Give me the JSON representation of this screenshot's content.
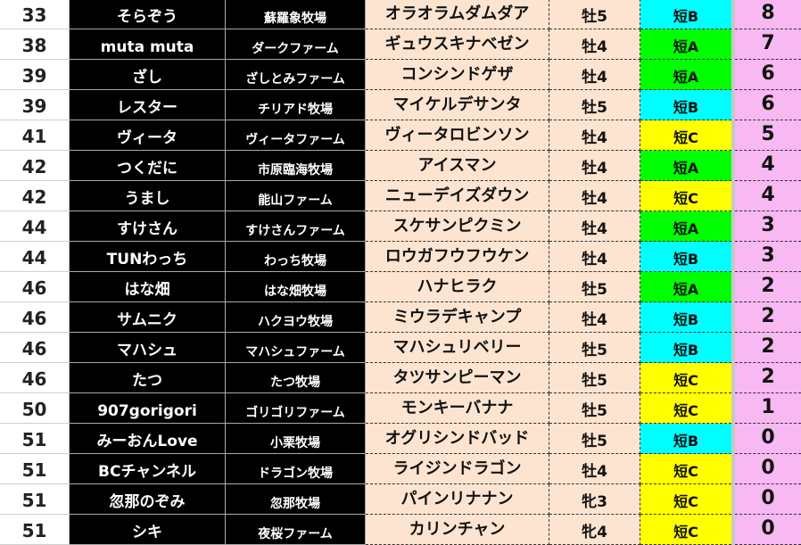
{
  "type_colors": {
    "短A": "#00ff00",
    "短B": "#00ffff",
    "短C": "#ffff00"
  },
  "rows": [
    {
      "rank": "33",
      "name": "そらぞう",
      "farm": "蘇羅象牧場",
      "horse": "オラオラムダムダア",
      "sex_age": "牡5",
      "type": "短B",
      "points": "8"
    },
    {
      "rank": "38",
      "name": "muta muta",
      "farm": "ダークファーム",
      "horse": "ギュウスキナベゼン",
      "sex_age": "牡4",
      "type": "短A",
      "points": "7"
    },
    {
      "rank": "39",
      "name": "ざし",
      "farm": "ざしとみファーム",
      "horse": "コンシンドゲザ",
      "sex_age": "牡4",
      "type": "短A",
      "points": "6"
    },
    {
      "rank": "39",
      "name": "レスター",
      "farm": "チリアド牧場",
      "horse": "マイケルデサンタ",
      "sex_age": "牡5",
      "type": "短B",
      "points": "6"
    },
    {
      "rank": "41",
      "name": "ヴィータ",
      "farm": "ヴィータファーム",
      "horse": "ヴィータロビンソン",
      "sex_age": "牡4",
      "type": "短C",
      "points": "5"
    },
    {
      "rank": "42",
      "name": "つくだに",
      "farm": "市原臨海牧場",
      "horse": "アイスマン",
      "sex_age": "牡4",
      "type": "短A",
      "points": "4"
    },
    {
      "rank": "42",
      "name": "うまし",
      "farm": "能山ファーム",
      "horse": "ニューデイズダウン",
      "sex_age": "牡4",
      "type": "短C",
      "points": "4"
    },
    {
      "rank": "44",
      "name": "すけさん",
      "farm": "すけさんファーム",
      "horse": "スケサンピクミン",
      "sex_age": "牡4",
      "type": "短A",
      "points": "3"
    },
    {
      "rank": "44",
      "name": "TUNわっち",
      "farm": "わっち牧場",
      "horse": "ロウガフウフウケン",
      "sex_age": "牡4",
      "type": "短B",
      "points": "3"
    },
    {
      "rank": "46",
      "name": "はな畑",
      "farm": "はな畑牧場",
      "horse": "ハナヒラク",
      "sex_age": "牡5",
      "type": "短A",
      "points": "2"
    },
    {
      "rank": "46",
      "name": "サムニク",
      "farm": "ハクヨウ牧場",
      "horse": "ミウラデキャンプ",
      "sex_age": "牡4",
      "type": "短B",
      "points": "2"
    },
    {
      "rank": "46",
      "name": "マハシュ",
      "farm": "マハシュファーム",
      "horse": "マハシュリベリー",
      "sex_age": "牡5",
      "type": "短B",
      "points": "2"
    },
    {
      "rank": "46",
      "name": "たつ",
      "farm": "たつ牧場",
      "horse": "タツサンピーマン",
      "sex_age": "牡5",
      "type": "短C",
      "points": "2"
    },
    {
      "rank": "50",
      "name": "907gorigori",
      "farm": "ゴリゴリファーム",
      "horse": "モンキーバナナ",
      "sex_age": "牡5",
      "type": "短C",
      "points": "1"
    },
    {
      "rank": "51",
      "name": "みーおんLove",
      "farm": "小栗牧場",
      "horse": "オグリシンドバッド",
      "sex_age": "牡5",
      "type": "短B",
      "points": "0"
    },
    {
      "rank": "51",
      "name": "BCチャンネル",
      "farm": "ドラゴン牧場",
      "horse": "ライジンドラゴン",
      "sex_age": "牡4",
      "type": "短C",
      "points": "0"
    },
    {
      "rank": "51",
      "name": "忽那のぞみ",
      "farm": "忽那牧場",
      "horse": "パインリナナン",
      "sex_age": "牝3",
      "type": "短C",
      "points": "0"
    },
    {
      "rank": "51",
      "name": "シキ",
      "farm": "夜桜ファーム",
      "horse": "カリンチャン",
      "sex_age": "牝4",
      "type": "短C",
      "points": "0"
    }
  ]
}
